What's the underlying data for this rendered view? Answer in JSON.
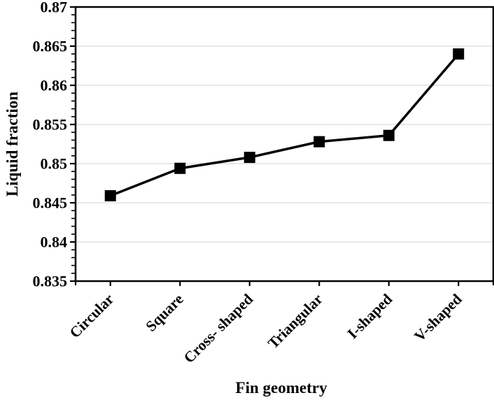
{
  "chart_data": {
    "type": "line",
    "title": "",
    "xlabel": "Fin geometry",
    "ylabel": "Liquid fraction",
    "categories": [
      "Circular",
      "Square",
      "Cross- shaped",
      "Triangular",
      "I-shaped",
      "V-shaped"
    ],
    "values": [
      0.8459,
      0.8494,
      0.8508,
      0.8528,
      0.8536,
      0.864
    ],
    "ylim": [
      0.835,
      0.87
    ],
    "y_major_step": 0.005,
    "y_minor_step": 0.001,
    "y_tick_labels": [
      "0.835",
      "0.84",
      "0.845",
      "0.85",
      "0.855",
      "0.86",
      "0.865",
      "0.87"
    ],
    "x_label_rotation_deg": -45,
    "grid": "horizontal-major",
    "legend": "none",
    "marker": "filled-square",
    "colors": {
      "line": "#000000",
      "marker": "#000000",
      "axis": "#000000",
      "grid": "#d9d9d9",
      "background": "#ffffff"
    }
  }
}
